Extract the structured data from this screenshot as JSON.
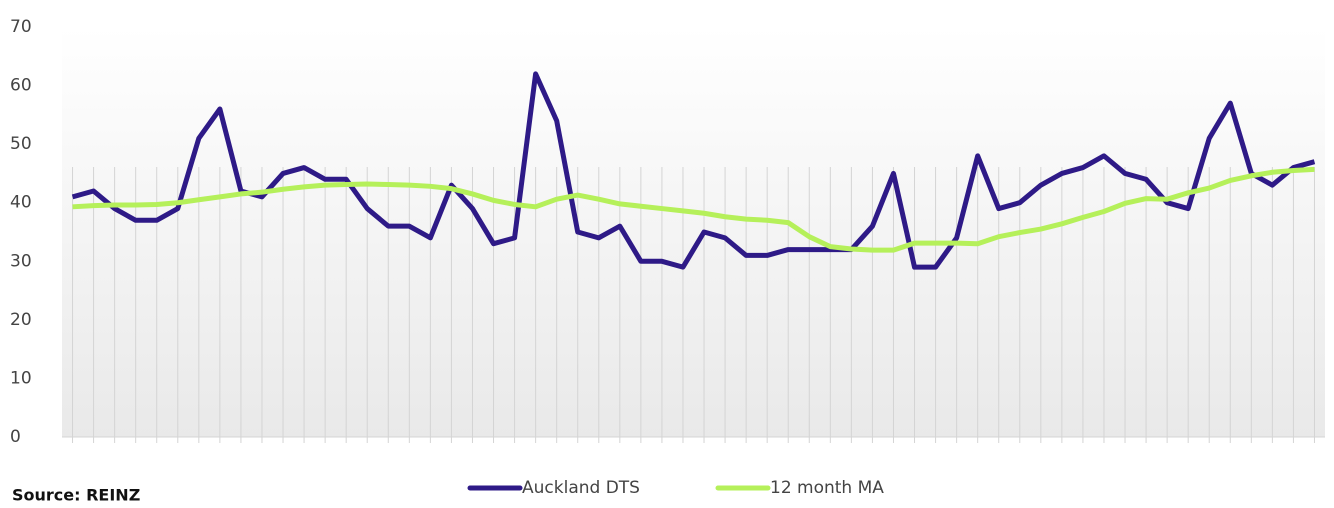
{
  "chart_data": {
    "type": "line",
    "x": [
      null,
      null,
      null,
      null,
      null,
      null,
      null,
      null,
      null,
      null,
      null,
      null,
      null,
      null,
      null,
      null,
      null,
      null,
      null,
      null,
      null,
      null,
      null,
      null,
      null,
      null,
      null,
      null,
      null,
      null,
      null,
      null,
      null,
      null,
      null,
      null,
      null,
      null,
      null,
      null,
      null,
      null,
      null,
      null,
      null,
      null,
      null,
      null,
      null,
      null,
      null,
      null,
      null,
      null,
      null,
      null,
      null,
      null,
      null,
      null
    ],
    "series": [
      {
        "name": "Auckland DTS",
        "color": "#2e1a87",
        "values": [
          41,
          42,
          39,
          37,
          37,
          39,
          51,
          56,
          42,
          41,
          45,
          46,
          44,
          44,
          39,
          36,
          36,
          34,
          43,
          39,
          33,
          34,
          62,
          54,
          35,
          34,
          36,
          30,
          30,
          29,
          35,
          34,
          31,
          31,
          32,
          32,
          32,
          32,
          36,
          45,
          29,
          29,
          34,
          48,
          39,
          40,
          43,
          45,
          46,
          48,
          45,
          44,
          40,
          39,
          51,
          57,
          45,
          43,
          46,
          47
        ]
      },
      {
        "name": "12 month MA",
        "color": "#b5f05a",
        "values": [
          39.3,
          39.5,
          39.6,
          39.6,
          39.7,
          40,
          40.5,
          41,
          41.5,
          41.8,
          42.3,
          42.7,
          43,
          43.1,
          43.2,
          43.1,
          43,
          42.8,
          42.4,
          41.5,
          40.4,
          39.7,
          39.3,
          40.6,
          41.3,
          40.6,
          39.8,
          39.4,
          39,
          38.6,
          38.2,
          37.6,
          37.2,
          37,
          36.6,
          34.2,
          32.5,
          32.1,
          31.9,
          31.9,
          33.1,
          33.1,
          33.1,
          33,
          34.2,
          34.9,
          35.5,
          36.4,
          37.5,
          38.5,
          39.9,
          40.7,
          40.6,
          41.7,
          42.5,
          43.8,
          44.6,
          45.2,
          45.5,
          45.7
        ]
      }
    ],
    "ylim": [
      0,
      70
    ],
    "yticks": [
      0,
      10,
      20,
      30,
      40,
      50,
      60,
      70
    ],
    "grid": false,
    "xgrid": true,
    "legend": "bottom",
    "source": "Source: REINZ"
  }
}
